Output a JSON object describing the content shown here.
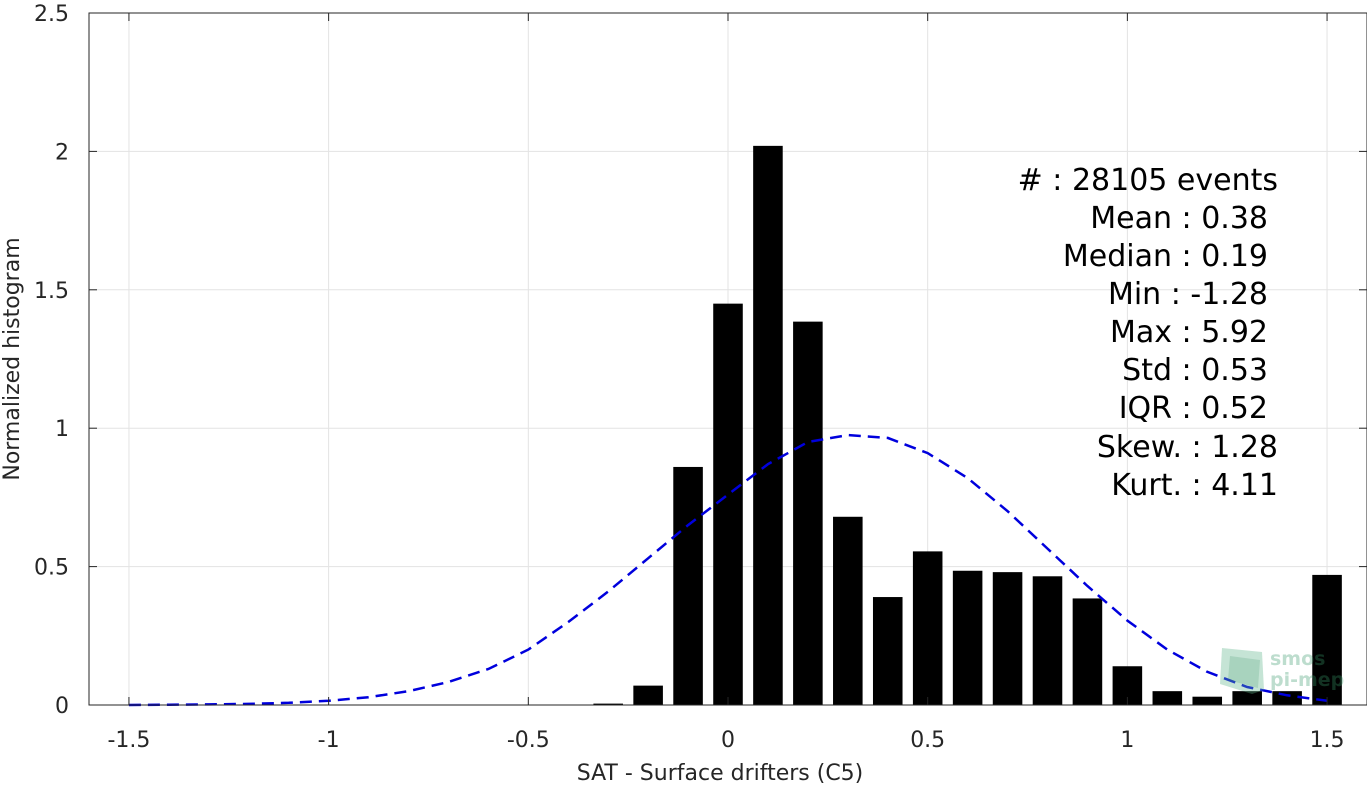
{
  "chart_data": {
    "type": "bar",
    "xlabel": "SAT - Surface drifters (C5)",
    "ylabel": "Normalized histogram",
    "xlim": [
      -1.6,
      1.6
    ],
    "ylim": [
      0,
      2.5
    ],
    "xticks": [
      -1.5,
      -1,
      -0.5,
      0,
      0.5,
      1,
      1.5
    ],
    "xtick_labels": [
      "-1.5",
      "-1",
      "-0.5",
      "0",
      "0.5",
      "1",
      "1.5"
    ],
    "yticks": [
      0,
      0.5,
      1,
      1.5,
      2,
      2.5
    ],
    "ytick_labels": [
      "0",
      "0.5",
      "1",
      "1.5",
      "2",
      "2.5"
    ],
    "grid": true,
    "bar_color": "#000000",
    "bars": {
      "x": [
        -0.3,
        -0.2,
        -0.1,
        0.0,
        0.1,
        0.2,
        0.3,
        0.4,
        0.5,
        0.6,
        0.7,
        0.8,
        0.9,
        1.0,
        1.1,
        1.2,
        1.3,
        1.4,
        1.5
      ],
      "values": [
        0.005,
        0.07,
        0.86,
        1.45,
        2.02,
        1.385,
        0.68,
        0.39,
        0.555,
        0.485,
        0.48,
        0.465,
        0.385,
        0.14,
        0.05,
        0.03,
        0.05,
        0.05,
        0.47
      ]
    },
    "fit": {
      "style": "dashed",
      "color": "#0000dd",
      "x": [
        -1.5,
        -1.4,
        -1.3,
        -1.2,
        -1.1,
        -1.0,
        -0.9,
        -0.8,
        -0.7,
        -0.6,
        -0.5,
        -0.4,
        -0.3,
        -0.2,
        -0.1,
        0.0,
        0.1,
        0.2,
        0.3,
        0.4,
        0.5,
        0.6,
        0.7,
        0.8,
        0.9,
        1.0,
        1.1,
        1.2,
        1.3,
        1.4,
        1.5
      ],
      "values": [
        0.0,
        0.001,
        0.002,
        0.004,
        0.008,
        0.015,
        0.028,
        0.05,
        0.083,
        0.13,
        0.2,
        0.3,
        0.41,
        0.53,
        0.65,
        0.76,
        0.87,
        0.95,
        0.975,
        0.965,
        0.91,
        0.82,
        0.7,
        0.565,
        0.43,
        0.305,
        0.2,
        0.12,
        0.065,
        0.035,
        0.015
      ]
    },
    "stats": {
      "count": "#  : 28105 events",
      "mean": "Mean : 0.38",
      "median": "Median : 0.19",
      "min": "Min : -1.28",
      "max": "Max : 5.92",
      "std": "Std : 0.53",
      "iqr": "IQR : 0.52",
      "skew": "Skew. : 1.28",
      "kurt": "Kurt. : 4.11"
    },
    "logo": {
      "line1": "smos",
      "line2": "pi-mep"
    }
  }
}
